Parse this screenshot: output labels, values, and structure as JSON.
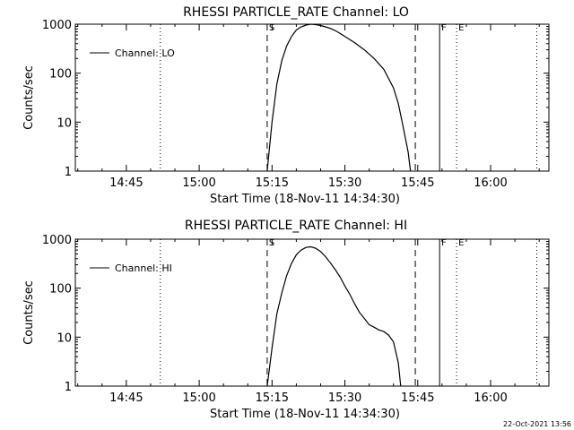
{
  "chart_data": [
    {
      "type": "line",
      "title": "RHESSI PARTICLE_RATE Channel: LO",
      "xlabel": "Start Time (18-Nov-11 14:34:30)",
      "ylabel": "Counts/sec",
      "y_scale": "log",
      "ylim": [
        1,
        1000
      ],
      "xlim": [
        "14:34:30",
        "16:12:00"
      ],
      "x_ticks": [
        "14:45",
        "15:00",
        "15:15",
        "15:30",
        "15:45",
        "16:00"
      ],
      "y_ticks": [
        "1",
        "10",
        "100",
        "1000"
      ],
      "legend": {
        "position": "top-left",
        "entries": [
          "Channel: LO"
        ]
      },
      "markers": [
        {
          "time": "15:14:00",
          "style": "dashed",
          "label": "S"
        },
        {
          "time": "15:44:30",
          "style": "dashed",
          "label": ""
        },
        {
          "time": "15:49:30",
          "style": "solid",
          "label": "F"
        },
        {
          "time": "15:53:00",
          "style": "dotted",
          "label": "E"
        },
        {
          "time": "14:52:00",
          "style": "dotted",
          "label": ""
        },
        {
          "time": "16:09:30",
          "style": "dotted",
          "label": ""
        }
      ],
      "series": [
        {
          "name": "Channel: LO",
          "x": [
            "15:14:00",
            "15:15:00",
            "15:16:00",
            "15:17:00",
            "15:18:00",
            "15:19:00",
            "15:20:00",
            "15:21:00",
            "15:22:00",
            "15:23:00",
            "15:24:00",
            "15:25:00",
            "15:26:00",
            "15:27:00",
            "15:28:00",
            "15:29:00",
            "15:30:00",
            "15:32:00",
            "15:34:00",
            "15:36:00",
            "15:38:00",
            "15:40:00",
            "15:41:00",
            "15:42:00",
            "15:43:00",
            "15:43:30"
          ],
          "y": [
            1,
            10,
            60,
            180,
            360,
            560,
            760,
            880,
            960,
            1000,
            980,
            940,
            880,
            820,
            740,
            650,
            560,
            420,
            300,
            200,
            120,
            50,
            24,
            8,
            2.5,
            1
          ]
        }
      ]
    },
    {
      "type": "line",
      "title": "RHESSI PARTICLE_RATE Channel: HI",
      "xlabel": "Start Time (18-Nov-11 14:34:30)",
      "ylabel": "Counts/sec",
      "y_scale": "log",
      "ylim": [
        1,
        1000
      ],
      "xlim": [
        "14:34:30",
        "16:12:00"
      ],
      "x_ticks": [
        "14:45",
        "15:00",
        "15:15",
        "15:30",
        "15:45",
        "16:00"
      ],
      "y_ticks": [
        "1",
        "10",
        "100",
        "1000"
      ],
      "legend": {
        "position": "top-left",
        "entries": [
          "Channel: HI"
        ]
      },
      "markers": [
        {
          "time": "15:14:00",
          "style": "dashed",
          "label": "S"
        },
        {
          "time": "15:44:30",
          "style": "dashed",
          "label": ""
        },
        {
          "time": "15:49:30",
          "style": "solid",
          "label": "F"
        },
        {
          "time": "15:53:00",
          "style": "dotted",
          "label": "E"
        },
        {
          "time": "14:52:00",
          "style": "dotted",
          "label": ""
        },
        {
          "time": "16:09:30",
          "style": "dotted",
          "label": ""
        }
      ],
      "series": [
        {
          "name": "Channel: HI",
          "x": [
            "15:14:00",
            "15:15:00",
            "15:16:00",
            "15:17:00",
            "15:18:00",
            "15:19:00",
            "15:20:00",
            "15:21:00",
            "15:22:00",
            "15:23:00",
            "15:24:00",
            "15:25:00",
            "15:26:00",
            "15:27:00",
            "15:28:00",
            "15:29:00",
            "15:30:00",
            "15:31:00",
            "15:32:00",
            "15:33:00",
            "15:34:00",
            "15:35:00",
            "15:36:00",
            "15:37:00",
            "15:38:00",
            "15:39:00",
            "15:40:00",
            "15:41:00",
            "15:41:30"
          ],
          "y": [
            1,
            6,
            30,
            80,
            180,
            320,
            480,
            600,
            680,
            700,
            650,
            560,
            440,
            330,
            240,
            170,
            110,
            75,
            48,
            32,
            24,
            18,
            16,
            14,
            13,
            11,
            8,
            3,
            1
          ]
        }
      ]
    }
  ],
  "footer_text": "22-Oct-2021 13:56"
}
